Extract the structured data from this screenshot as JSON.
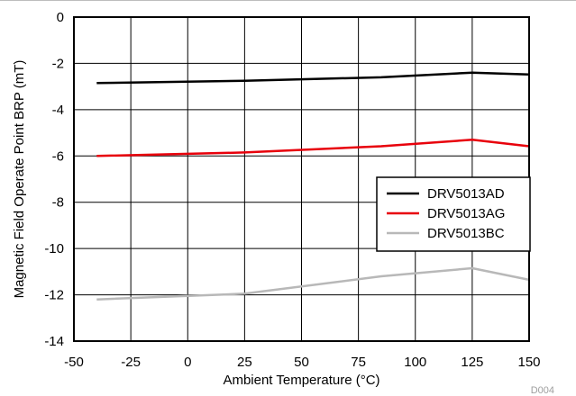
{
  "chart_data": {
    "type": "line",
    "title": "",
    "xlabel": "Ambient Temperature (°C)",
    "ylabel": "Magnetic Field Operate Point BRP (mT)",
    "xlim": [
      -50,
      150
    ],
    "ylim": [
      -14,
      0
    ],
    "xticks": [
      -50,
      -25,
      0,
      25,
      50,
      75,
      100,
      125,
      150
    ],
    "yticks": [
      0,
      -2,
      -4,
      -6,
      -8,
      -10,
      -12,
      -14
    ],
    "grid": true,
    "legend_position": "right",
    "series": [
      {
        "name": "DRV5013AD",
        "color": "#000000",
        "x": [
          -40,
          25,
          85,
          125,
          150
        ],
        "y": [
          -2.85,
          -2.75,
          -2.6,
          -2.4,
          -2.48
        ]
      },
      {
        "name": "DRV5013AG",
        "color": "#e8000b",
        "x": [
          -40,
          25,
          85,
          125,
          150
        ],
        "y": [
          -6.0,
          -5.85,
          -5.58,
          -5.3,
          -5.58
        ]
      },
      {
        "name": "DRV5013BC",
        "color": "#b8b8b8",
        "x": [
          -40,
          25,
          85,
          125,
          150
        ],
        "y": [
          -12.2,
          -11.95,
          -11.2,
          -10.85,
          -11.35
        ]
      }
    ]
  },
  "figure_id": "D004"
}
